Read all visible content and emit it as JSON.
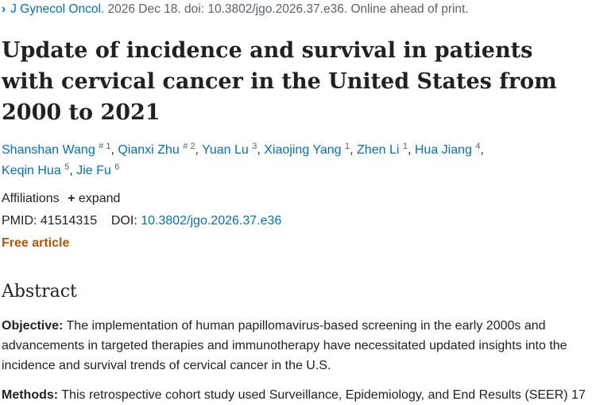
{
  "citation": {
    "journal": "J Gynecol Oncol.",
    "rest": " 2026 Dec 18. doi: 10.3802/jgo.2026.37.e36. Online ahead of print."
  },
  "title": "Update of incidence and survival in patients with cervical cancer in the United States from 2000 to 2021",
  "authors": [
    {
      "name": "Shanshan Wang",
      "sup": "# 1"
    },
    {
      "name": "Qianxi Zhu",
      "sup": "# 2"
    },
    {
      "name": "Yuan Lu",
      "sup": "3"
    },
    {
      "name": "Xiaojing Yang",
      "sup": "1"
    },
    {
      "name": "Zhen Li",
      "sup": "1"
    },
    {
      "name": "Hua Jiang",
      "sup": "4"
    },
    {
      "name": "Keqin Hua",
      "sup": "5"
    },
    {
      "name": "Jie Fu",
      "sup": "6"
    }
  ],
  "affiliations": {
    "label": "Affiliations",
    "expand_label": "expand"
  },
  "ids": {
    "pmid_label": "PMID:",
    "pmid": "41514315",
    "doi_label": "DOI:",
    "doi": "10.3802/jgo.2026.37.e36"
  },
  "free_article": "Free article",
  "abstract": {
    "heading": "Abstract",
    "objective_label": "Objective:",
    "objective_text": " The implementation of human papillomavirus-based screening in the early 2000s and advancements in targeted therapies and immunotherapy have necessitated updated insights into the incidence and survival trends of cervical cancer in the U.S.",
    "methods_label": "Methods:",
    "methods_text": " This retrospective cohort study used Surveillance, Epidemiology, and End Results (SEER) 17"
  }
}
